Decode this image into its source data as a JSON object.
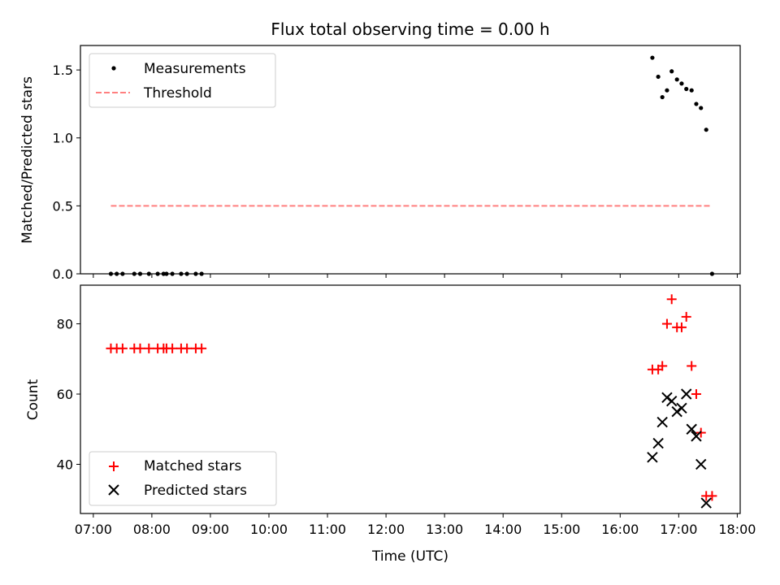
{
  "chart_data": [
    {
      "type": "scatter",
      "title": "Flux total observing time = 0.00 h",
      "xlabel": "",
      "ylabel": "Matched/Predicted stars",
      "xlim": [
        6.78,
        18.05
      ],
      "ylim": [
        0.0,
        1.68
      ],
      "yticks": [
        0.0,
        0.5,
        1.0,
        1.5
      ],
      "ytick_labels": [
        "0.0",
        "0.5",
        "1.0",
        "1.5"
      ],
      "legend_position": "top-left",
      "series": [
        {
          "name": "Measurements",
          "marker": "dot",
          "color": "#000000",
          "x": [
            7.3,
            7.4,
            7.5,
            7.7,
            7.8,
            7.95,
            8.1,
            8.2,
            8.25,
            8.35,
            8.5,
            8.6,
            8.75,
            8.85,
            16.55,
            16.65,
            16.72,
            16.8,
            16.88,
            16.97,
            17.05,
            17.13,
            17.22,
            17.3,
            17.38,
            17.47,
            17.57
          ],
          "y": [
            0,
            0,
            0,
            0,
            0,
            0,
            0,
            0,
            0,
            0,
            0,
            0,
            0,
            0,
            1.59,
            1.45,
            1.3,
            1.35,
            1.49,
            1.43,
            1.4,
            1.36,
            1.35,
            1.25,
            1.22,
            1.06,
            0.0
          ]
        },
        {
          "name": "Threshold",
          "marker": "dashed-line",
          "color": "#ff7f7f",
          "x": [
            7.3,
            17.57
          ],
          "y": [
            0.5,
            0.5
          ]
        }
      ]
    },
    {
      "type": "scatter",
      "title": "",
      "xlabel": "Time (UTC)",
      "ylabel": "Count",
      "xlim": [
        6.78,
        18.05
      ],
      "ylim": [
        26,
        91
      ],
      "yticks": [
        40,
        60,
        80
      ],
      "ytick_labels": [
        "40",
        "60",
        "80"
      ],
      "xticks": [
        7,
        8,
        9,
        10,
        11,
        12,
        13,
        14,
        15,
        16,
        17,
        18
      ],
      "xtick_labels": [
        "07:00",
        "08:00",
        "09:00",
        "10:00",
        "11:00",
        "12:00",
        "13:00",
        "14:00",
        "15:00",
        "16:00",
        "17:00",
        "18:00"
      ],
      "legend_position": "bottom-left",
      "series": [
        {
          "name": "Matched stars",
          "marker": "plus",
          "color": "#ff0000",
          "x": [
            7.3,
            7.4,
            7.5,
            7.7,
            7.8,
            7.95,
            8.1,
            8.2,
            8.25,
            8.35,
            8.5,
            8.6,
            8.75,
            8.85,
            16.55,
            16.65,
            16.72,
            16.8,
            16.88,
            16.97,
            17.05,
            17.13,
            17.22,
            17.3,
            17.38,
            17.47,
            17.57
          ],
          "y": [
            73,
            73,
            73,
            73,
            73,
            73,
            73,
            73,
            73,
            73,
            73,
            73,
            73,
            73,
            67,
            67,
            68,
            80,
            87,
            79,
            79,
            82,
            68,
            60,
            49,
            31,
            31
          ]
        },
        {
          "name": "Predicted stars",
          "marker": "x",
          "color": "#000000",
          "x": [
            16.55,
            16.65,
            16.72,
            16.8,
            16.88,
            16.97,
            17.05,
            17.13,
            17.22,
            17.3,
            17.38,
            17.47
          ],
          "y": [
            42,
            46,
            52,
            59,
            58,
            55,
            56,
            60,
            50,
            48,
            40,
            29
          ]
        }
      ]
    }
  ]
}
